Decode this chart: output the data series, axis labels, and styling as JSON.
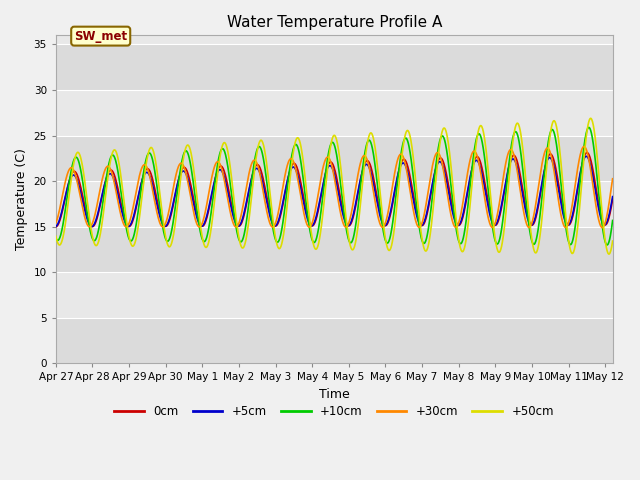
{
  "title": "Water Temperature Profile A",
  "xlabel": "Time",
  "ylabel": "Temperature (C)",
  "ylim": [
    0,
    36
  ],
  "yticks": [
    0,
    5,
    10,
    15,
    20,
    25,
    30,
    35
  ],
  "start_day": 0,
  "end_day": 15.2,
  "legend_label": "SW_met",
  "series_colors": {
    "0cm": "#cc0000",
    "+5cm": "#0000cc",
    "+10cm": "#00cc00",
    "+30cm": "#ff8800",
    "+50cm": "#dddd00"
  },
  "series_lw": 1.2,
  "xtick_labels": [
    "Apr 27",
    "Apr 28",
    "Apr 29",
    "Apr 30",
    "May 1",
    "May 2",
    "May 3",
    "May 4",
    "May 5",
    "May 6",
    "May 7",
    "May 8",
    "May 9",
    "May 10",
    "May 11",
    "May 12"
  ],
  "xtick_positions": [
    0,
    1,
    2,
    3,
    4,
    5,
    6,
    7,
    8,
    9,
    10,
    11,
    12,
    13,
    14,
    15
  ],
  "plot_bg_color": "#e8e8e8",
  "band_color_light": "#d8d8d8",
  "band_color_dark": "#e8e8e8",
  "fig_bg_color": "#f0f0f0",
  "grid_color": "#ffffff"
}
